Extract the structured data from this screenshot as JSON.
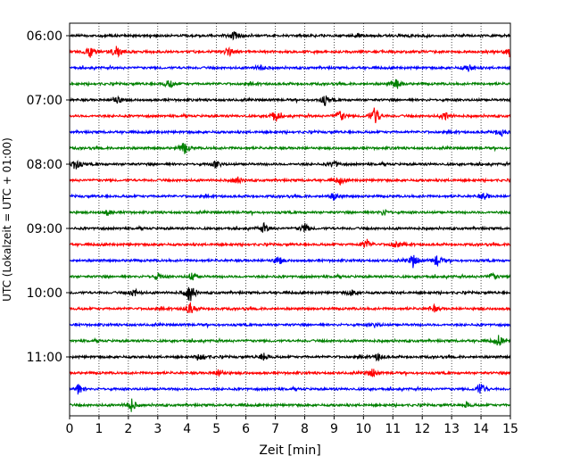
{
  "chart_data": {
    "type": "line",
    "title": "",
    "xlabel": "Zeit  [min]",
    "ylabel": "UTC (Lokalzeit = UTC + 01:00)",
    "xlim": [
      0,
      15
    ],
    "x_ticks": [
      "0",
      "1",
      "2",
      "3",
      "4",
      "5",
      "6",
      "7",
      "8",
      "9",
      "10",
      "11",
      "12",
      "13",
      "14",
      "15"
    ],
    "y_tick_labels": [
      "06:00",
      "07:00",
      "08:00",
      "09:00",
      "10:00",
      "11:00"
    ],
    "row_interval_minutes": 15,
    "grid": "vertical dotted",
    "color_cycle": [
      "#000000",
      "#ff0000",
      "#0000ff",
      "#008000"
    ],
    "rows": [
      {
        "start": "06:00",
        "events": [
          [
            5.6,
            1.6
          ],
          [
            9.8,
            1.0
          ]
        ]
      },
      {
        "start": "06:15",
        "events": [
          [
            0.7,
            2.2
          ],
          [
            1.6,
            2.6
          ],
          [
            5.4,
            1.8
          ],
          [
            15.0,
            2.4
          ]
        ]
      },
      {
        "start": "06:30",
        "events": [
          [
            6.5,
            1.2
          ],
          [
            13.6,
            1.6
          ]
        ]
      },
      {
        "start": "06:45",
        "events": [
          [
            3.4,
            2.0
          ],
          [
            11.1,
            2.2
          ]
        ]
      },
      {
        "start": "07:00",
        "events": [
          [
            1.6,
            2.0
          ],
          [
            8.7,
            1.8
          ]
        ]
      },
      {
        "start": "07:15",
        "events": [
          [
            7.0,
            2.4
          ],
          [
            9.2,
            2.4
          ],
          [
            10.4,
            4.2
          ],
          [
            12.8,
            1.8
          ]
        ]
      },
      {
        "start": "07:30",
        "events": [
          [
            14.7,
            1.8
          ]
        ]
      },
      {
        "start": "07:45",
        "events": [
          [
            3.9,
            2.4
          ]
        ]
      },
      {
        "start": "08:00",
        "events": [
          [
            0.2,
            2.2
          ],
          [
            5.0,
            1.6
          ],
          [
            9.0,
            1.4
          ]
        ]
      },
      {
        "start": "08:15",
        "events": [
          [
            5.7,
            1.4
          ],
          [
            9.2,
            1.4
          ]
        ]
      },
      {
        "start": "08:30",
        "events": [
          [
            9.0,
            1.6
          ],
          [
            14.1,
            1.2
          ]
        ]
      },
      {
        "start": "08:45",
        "events": [
          [
            1.3,
            1.2
          ],
          [
            10.7,
            1.2
          ]
        ]
      },
      {
        "start": "09:00",
        "events": [
          [
            6.6,
            1.8
          ],
          [
            8.0,
            2.0
          ]
        ]
      },
      {
        "start": "09:15",
        "events": [
          [
            10.1,
            2.2
          ],
          [
            11.1,
            1.6
          ]
        ]
      },
      {
        "start": "09:30",
        "events": [
          [
            7.1,
            1.6
          ],
          [
            11.7,
            2.8
          ],
          [
            12.5,
            2.4
          ]
        ]
      },
      {
        "start": "09:45",
        "events": [
          [
            3.0,
            1.4
          ],
          [
            4.2,
            1.8
          ],
          [
            14.4,
            1.4
          ]
        ]
      },
      {
        "start": "10:00",
        "events": [
          [
            2.2,
            1.6
          ],
          [
            4.1,
            4.0
          ],
          [
            9.6,
            1.2
          ]
        ]
      },
      {
        "start": "10:15",
        "events": [
          [
            4.1,
            2.4
          ],
          [
            12.4,
            1.2
          ]
        ]
      },
      {
        "start": "10:30",
        "events": [
          [
            10.4,
            1.0
          ]
        ]
      },
      {
        "start": "10:45",
        "events": [
          [
            14.6,
            2.0
          ]
        ]
      },
      {
        "start": "11:00",
        "events": [
          [
            4.5,
            1.8
          ],
          [
            6.6,
            1.6
          ],
          [
            10.5,
            1.4
          ]
        ]
      },
      {
        "start": "11:15",
        "events": [
          [
            5.1,
            1.8
          ],
          [
            10.3,
            1.8
          ]
        ]
      },
      {
        "start": "11:30",
        "events": [
          [
            0.3,
            2.0
          ],
          [
            14.0,
            2.6
          ]
        ]
      },
      {
        "start": "11:45",
        "events": [
          [
            2.1,
            2.4
          ],
          [
            13.5,
            1.0
          ]
        ]
      }
    ]
  }
}
